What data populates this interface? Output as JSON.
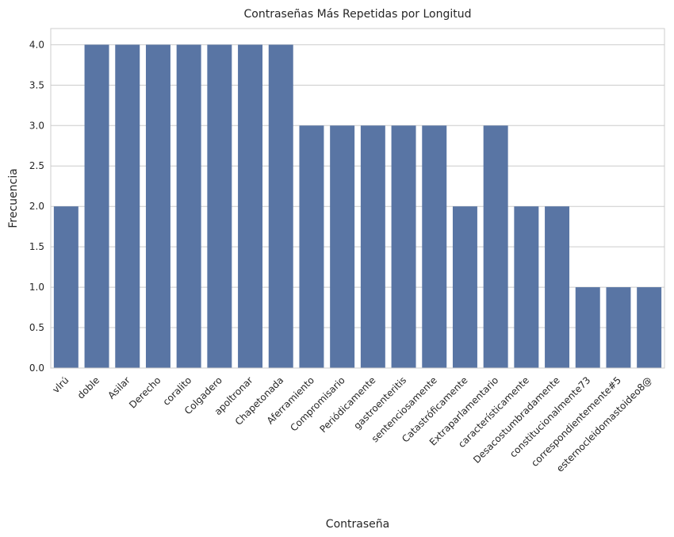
{
  "chart_data": {
    "type": "bar",
    "title": "Contraseñas Más Repetidas por Longitud",
    "xlabel": "Contraseña",
    "ylabel": "Frecuencia",
    "categories": [
      "vlrú",
      "doble",
      "Asilar",
      "Derecho",
      "coralito",
      "Colgadero",
      "apoltronar",
      "Chapetonada",
      "Aferramiento",
      "Compromisario",
      "Periódicamente",
      "gastroenteritis",
      "sentenciosamente",
      "Catastróficamente",
      "Extraparlamentario",
      "característicamente",
      "Desacostumbradamente",
      "constitucionalmente73",
      "correspondientemente#5",
      "esternocleidomastoideo8@"
    ],
    "values": [
      2,
      4,
      4,
      4,
      4,
      4,
      4,
      4,
      3,
      3,
      3,
      3,
      3,
      2,
      3,
      2,
      2,
      1,
      1,
      1
    ],
    "ylim": [
      0,
      4.2
    ],
    "yticks": [
      "0.0",
      "0.5",
      "1.0",
      "1.5",
      "2.0",
      "2.5",
      "3.0",
      "3.5",
      "4.0"
    ],
    "grid": "horizontal",
    "bar_color": "#5975a4",
    "grid_color": "#cccccc",
    "legend": "none"
  }
}
